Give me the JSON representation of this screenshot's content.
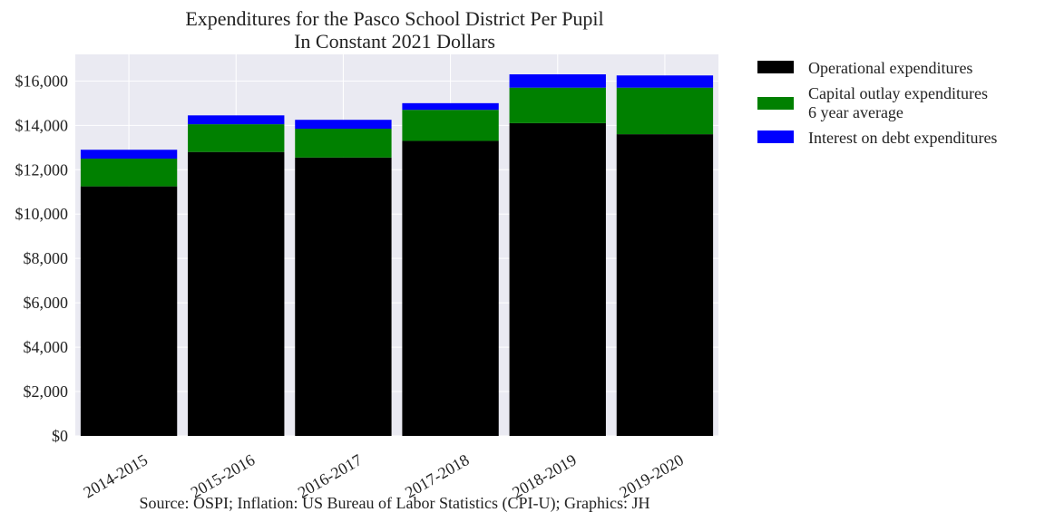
{
  "chart_data": {
    "type": "bar",
    "stacked": true,
    "title": "Expenditures for the Pasco School District Per Pupil",
    "subtitle": "In Constant 2021 Dollars",
    "xlabel": "",
    "ylabel": "",
    "categories": [
      "2014-2015",
      "2015-2016",
      "2016-2017",
      "2017-2018",
      "2018-2019",
      "2019-2020"
    ],
    "series": [
      {
        "name": "Operational expenditures",
        "color": "#000000",
        "values": [
          11250,
          12800,
          12550,
          13300,
          14100,
          13600
        ]
      },
      {
        "name": "Capital outlay expenditures",
        "name_line2": "6 year average",
        "color": "#008000",
        "values": [
          1250,
          1250,
          1300,
          1400,
          1600,
          2100
        ]
      },
      {
        "name": "Interest on debt expenditures",
        "color": "#0000ff",
        "values": [
          400,
          400,
          400,
          300,
          600,
          550
        ]
      }
    ],
    "ylim": [
      0,
      17200
    ],
    "yticks": [
      0,
      2000,
      4000,
      6000,
      8000,
      10000,
      12000,
      14000,
      16000
    ],
    "ytick_labels": [
      "$0",
      "$2,000",
      "$4,000",
      "$6,000",
      "$8,000",
      "$10,000",
      "$12,000",
      "$14,000",
      "$16,000"
    ],
    "grid": true,
    "legend_position": "outside-right-top",
    "plot_background": "#eaeaf2",
    "source_note": "Source: OSPI; Inflation: US Bureau of Labor Statistics (CPI-U); Graphics: JH"
  }
}
